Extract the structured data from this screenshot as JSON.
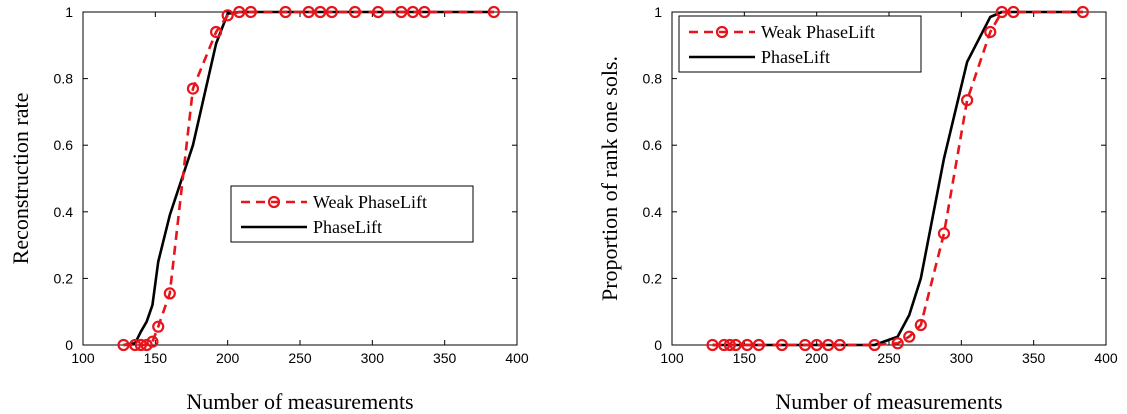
{
  "chart_data": [
    {
      "type": "line",
      "xlabel": "Number of measurements",
      "ylabel": "Reconstruction rate",
      "xlim": [
        100,
        400
      ],
      "ylim": [
        0,
        1
      ],
      "xticks": [
        100,
        150,
        200,
        250,
        300,
        350,
        400
      ],
      "yticks": [
        0,
        0.2,
        0.4,
        0.6,
        0.8,
        1
      ],
      "grid": false,
      "legend_position": "center-right",
      "series": [
        {
          "name": "Weak PhaseLift",
          "color": "#e8141b",
          "style": "dashed",
          "marker": "circle",
          "x": [
            128,
            136,
            140,
            144,
            148,
            152,
            160,
            176,
            192,
            200,
            208,
            216,
            240,
            256,
            264,
            272,
            288,
            304,
            320,
            328,
            336,
            384
          ],
          "y": [
            0,
            0,
            0,
            0,
            0.01,
            0.055,
            0.155,
            0.77,
            0.94,
            0.99,
            1,
            1,
            1,
            1,
            1,
            1,
            1,
            1,
            1,
            1,
            1,
            1
          ]
        },
        {
          "name": "PhaseLift",
          "color": "#000000",
          "style": "solid",
          "marker": "none",
          "x": [
            128,
            136,
            140,
            144,
            148,
            152,
            160,
            176,
            192,
            200,
            208,
            216,
            240,
            256,
            264,
            272,
            288,
            304,
            320,
            328,
            336,
            384
          ],
          "y": [
            0,
            0.005,
            0.04,
            0.07,
            0.12,
            0.25,
            0.39,
            0.6,
            0.905,
            0.995,
            1,
            1,
            1,
            1,
            1,
            1,
            1,
            1,
            1,
            1,
            1,
            1
          ]
        }
      ]
    },
    {
      "type": "line",
      "xlabel": "Number of measurements",
      "ylabel": "Proportion of rank one sols.",
      "xlim": [
        100,
        400
      ],
      "ylim": [
        0,
        1
      ],
      "xticks": [
        100,
        150,
        200,
        250,
        300,
        350,
        400
      ],
      "yticks": [
        0,
        0.2,
        0.4,
        0.6,
        0.8,
        1
      ],
      "grid": false,
      "legend_position": "top-left",
      "series": [
        {
          "name": "Weak PhaseLift",
          "color": "#e8141b",
          "style": "dashed",
          "marker": "circle",
          "x": [
            128,
            136,
            140,
            144,
            152,
            160,
            176,
            192,
            200,
            208,
            216,
            240,
            256,
            264,
            272,
            288,
            304,
            320,
            328,
            336,
            384
          ],
          "y": [
            0,
            0,
            0,
            0,
            0,
            0,
            0,
            0,
            0,
            0,
            0,
            0,
            0.005,
            0.025,
            0.06,
            0.335,
            0.735,
            0.94,
            1,
            1,
            1
          ]
        },
        {
          "name": "PhaseLift",
          "color": "#000000",
          "style": "solid",
          "marker": "none",
          "x": [
            128,
            136,
            140,
            144,
            152,
            160,
            176,
            192,
            200,
            208,
            216,
            240,
            256,
            264,
            272,
            288,
            304,
            320,
            328,
            336,
            384
          ],
          "y": [
            0,
            0,
            0,
            0,
            0,
            0,
            0,
            0,
            0,
            0,
            0,
            0,
            0.025,
            0.09,
            0.2,
            0.56,
            0.85,
            0.985,
            1,
            1,
            1
          ]
        }
      ]
    }
  ]
}
